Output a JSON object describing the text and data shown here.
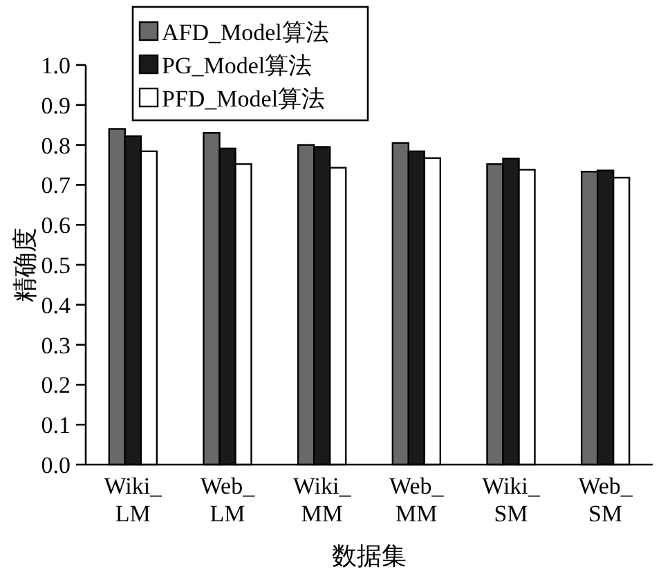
{
  "chart_data": {
    "type": "bar",
    "xlabel": "数据集",
    "ylabel": "精确度",
    "categories": [
      "Wiki_LM",
      "Web_LM",
      "Wiki_MM",
      "Web_MM",
      "Wiki_SM",
      "Web_SM"
    ],
    "series": [
      {
        "name": "AFD_Model算法",
        "color": "#696969",
        "values": [
          0.84,
          0.83,
          0.8,
          0.805,
          0.752,
          0.733
        ]
      },
      {
        "name": "PG_Model算法",
        "color": "#1a1a1a",
        "values": [
          0.822,
          0.791,
          0.795,
          0.784,
          0.766,
          0.736
        ]
      },
      {
        "name": "PFD_Model算法",
        "color": "#ffffff",
        "values": [
          0.784,
          0.752,
          0.743,
          0.767,
          0.738,
          0.718
        ]
      }
    ],
    "ylim": [
      0,
      1
    ],
    "yticks": [
      {
        "value": 0,
        "label": "0.0"
      },
      {
        "value": 0.1,
        "label": "0.1"
      },
      {
        "value": 0.2,
        "label": "0.2"
      },
      {
        "value": 0.3,
        "label": "0.3"
      },
      {
        "value": 0.4,
        "label": "0.4"
      },
      {
        "value": 0.5,
        "label": "0.5"
      },
      {
        "value": 0.6,
        "label": "0.6"
      },
      {
        "value": 0.7,
        "label": "0.7"
      },
      {
        "value": 0.8,
        "label": "0.8"
      },
      {
        "value": 0.9,
        "label": "0.9"
      },
      {
        "value": 1,
        "label": "1.0"
      }
    ],
    "legend": "top left",
    "grid": false
  }
}
